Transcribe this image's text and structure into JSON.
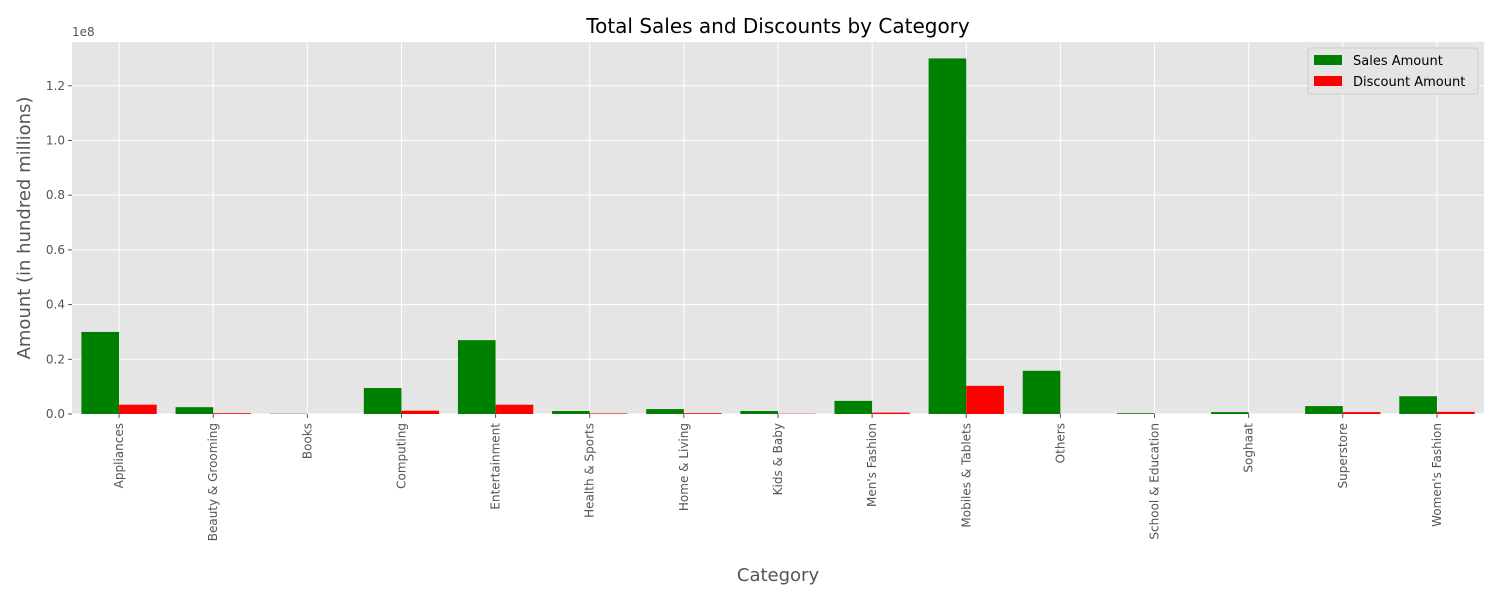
{
  "chart_data": {
    "type": "bar",
    "title": "Total Sales and Discounts by Category",
    "xlabel": "Category",
    "ylabel": "Amount (in hundred millions)",
    "offset_label": "1e8",
    "ylim": [
      0,
      1.36
    ],
    "yticks": [
      "0.0",
      "0.2",
      "0.4",
      "0.6",
      "0.8",
      "1.0",
      "1.2"
    ],
    "categories": [
      "Appliances",
      "Beauty & Grooming",
      "Books",
      "Computing",
      "Entertainment",
      "Health & Sports",
      "Home & Living",
      "Kids & Baby",
      "Men's Fashion",
      "Mobiles & Tablets",
      "Others",
      "School & Education",
      "Soghaat",
      "Superstore",
      "Women's Fashion"
    ],
    "series": [
      {
        "name": "Sales Amount",
        "color": "#008000",
        "values": [
          0.3,
          0.025,
          0.001,
          0.095,
          0.27,
          0.011,
          0.018,
          0.011,
          0.048,
          1.3,
          0.158,
          0.003,
          0.007,
          0.029,
          0.065
        ]
      },
      {
        "name": "Discount Amount",
        "color": "#ff0000",
        "values": [
          0.034,
          0.003,
          0.0,
          0.012,
          0.034,
          0.002,
          0.003,
          0.001,
          0.005,
          0.103,
          0.0,
          0.0,
          0.0,
          0.007,
          0.008
        ]
      }
    ],
    "grid": true,
    "legend_position": "top-right"
  }
}
